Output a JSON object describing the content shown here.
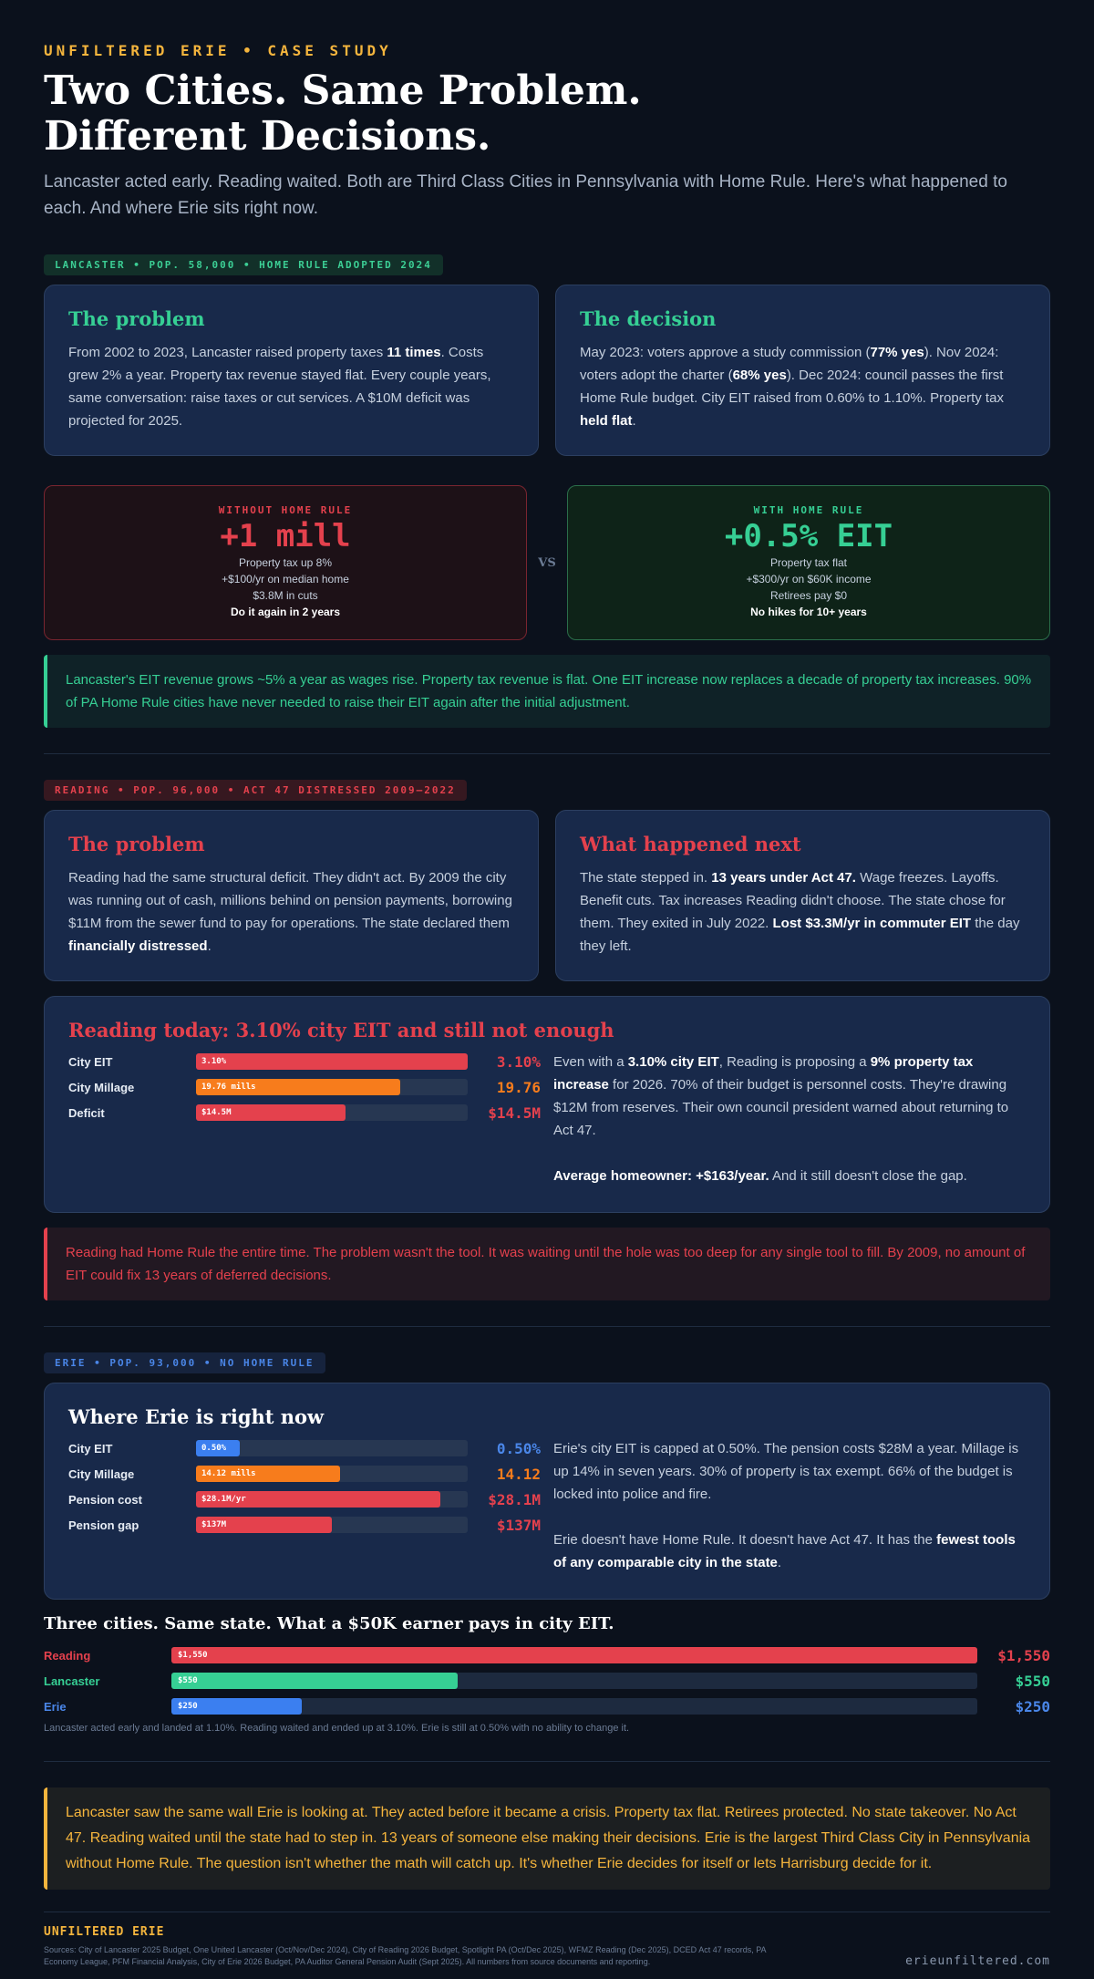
{
  "header": {
    "kicker": "UNFILTERED ERIE • CASE STUDY",
    "title_line1": "Two Cities. Same Problem.",
    "title_line2": "Different Decisions.",
    "subtitle": "Lancaster acted early. Reading waited. Both are Third Class Cities in Pennsylvania with Home Rule. Here's what happened to each. And where Erie sits right now."
  },
  "lancaster": {
    "tag": "LANCASTER • POP. 58,000 • HOME RULE ADOPTED 2024",
    "problem": {
      "title": "The problem",
      "t1": "From 2002 to 2023, Lancaster raised property taxes ",
      "b1": "11 times",
      "t2": ". Costs grew 2% a year. Property tax revenue stayed flat. Every couple years, same conversation: raise taxes or cut services. A $10M deficit was projected for 2025."
    },
    "decision": {
      "title": "The decision",
      "t1": "May 2023: voters approve a study commission (",
      "b1": "77% yes",
      "t2": "). Nov 2024: voters adopt the charter (",
      "b2": "68% yes",
      "t3": "). Dec 2024: council passes the first Home Rule budget. City EIT raised from 0.60% to 1.10%. Property tax ",
      "b3": "held flat",
      "t4": "."
    },
    "without": {
      "label": "WITHOUT HOME RULE",
      "big": "+1 mill",
      "lines": [
        "Property tax up 8%",
        "+$100/yr on median home",
        "$3.8M in cuts"
      ],
      "strong": "Do it again in 2 years"
    },
    "vs": "VS",
    "with": {
      "label": "WITH HOME RULE",
      "big": "+0.5% EIT",
      "lines": [
        "Property tax flat",
        "+$300/yr on $60K income",
        "Retirees pay $0"
      ],
      "strong": "No hikes for 10+ years"
    },
    "callout": "Lancaster's EIT revenue grows ~5% a year as wages rise. Property tax revenue is flat. One EIT increase now replaces a decade of property tax increases. 90% of PA Home Rule cities have never needed to raise their EIT again after the initial adjustment."
  },
  "reading": {
    "tag": "READING • POP. 96,000 • ACT 47 DISTRESSED 2009–2022",
    "problem": {
      "title": "The problem",
      "t1": "Reading had the same structural deficit. They didn't act. By 2009 the city was running out of cash, millions behind on pension payments, borrowing $11M from the sewer fund to pay for operations. The state declared them ",
      "b1": "financially distressed",
      "t2": "."
    },
    "next": {
      "title": "What happened next",
      "t1": "The state stepped in. ",
      "b1": "13 years under Act 47.",
      "t2": " Wage freezes. Layoffs. Benefit cuts. Tax increases Reading didn't choose. The state chose for them. They exited in July 2022. ",
      "b2": "Lost $3.3M/yr in commuter EIT",
      "t3": " the day they left."
    },
    "today": {
      "title": "Reading today: 3.10% city EIT and still not enough",
      "bars": [
        {
          "name": "City EIT",
          "label": "3.10%",
          "value": "3.10%",
          "fraction": 1.0,
          "color": "#e4414d"
        },
        {
          "name": "City Millage",
          "label": "19.76 mills",
          "value": "19.76",
          "fraction": 0.75,
          "color": "#f77c1c"
        },
        {
          "name": "Deficit",
          "label": "$14.5M",
          "value": "$14.5M",
          "fraction": 0.55,
          "color": "#e4414d"
        }
      ],
      "t1": "Even with a ",
      "b1": "3.10% city EIT",
      "t2": ", Reading is proposing a ",
      "b2": "9% property tax increase",
      "t3": " for 2026. 70% of their budget is personnel costs. They're drawing $12M from reserves. Their own council president warned about returning to Act 47.",
      "b3": "Average homeowner: +$163/year.",
      "t4": " And it still doesn't close the gap."
    },
    "callout": "Reading had Home Rule the entire time. The problem wasn't the tool. It was waiting until the hole was too deep for any single tool to fill. By 2009, no amount of EIT could fix 13 years of deferred decisions."
  },
  "erie": {
    "tag": "ERIE • POP. 93,000 • NO HOME RULE",
    "title": "Where Erie is right now",
    "bars": [
      {
        "name": "City EIT",
        "label": "0.50%",
        "value": "0.50%",
        "fraction": 0.16,
        "color": "#3b7ff0",
        "vcolor": "#4a86e8"
      },
      {
        "name": "City Millage",
        "label": "14.12 mills",
        "value": "14.12",
        "fraction": 0.53,
        "color": "#f77c1c",
        "vcolor": "#f77c1c"
      },
      {
        "name": "Pension cost",
        "label": "$28.1M/yr",
        "value": "$28.1M",
        "fraction": 0.9,
        "color": "#e4414d",
        "vcolor": "#e4414d"
      },
      {
        "name": "Pension gap",
        "label": "$137M",
        "value": "$137M",
        "fraction": 0.5,
        "color": "#e4414d",
        "vcolor": "#e4414d"
      }
    ],
    "p1": "Erie's city EIT is capped at 0.50%. The pension costs $28M a year. Millage is up 14% in seven years. 30% of property is tax exempt. 66% of the budget is locked into police and fire.",
    "p2a": "Erie doesn't have Home Rule. It doesn't have Act 47. It has the ",
    "p2b": "fewest tools of any comparable city in the state",
    "p2c": "."
  },
  "chart_data": {
    "type": "bar",
    "title": "Three cities. Same state. What a $50K earner pays in city EIT.",
    "categories": [
      "Reading",
      "Lancaster",
      "Erie"
    ],
    "values": [
      1550,
      550,
      250
    ],
    "value_labels": [
      "$1,550",
      "$550",
      "$250"
    ],
    "colors": [
      "#e4414d",
      "#36cf94",
      "#3b7ff0"
    ],
    "ylim": [
      0,
      1550
    ],
    "note": "Lancaster acted early and landed at 1.10%. Reading waited and ended up at 3.10%. Erie is still at 0.50% with no ability to change it."
  },
  "closing": "Lancaster saw the same wall Erie is looking at. They acted before it became a crisis. Property tax flat. Retirees protected. No state takeover. No Act 47. Reading waited until the state had to step in. 13 years of someone else making their decisions. Erie is the largest Third Class City in Pennsylvania without Home Rule. The question isn't whether the math will catch up. It's whether Erie decides for itself or lets Harrisburg decide for it.",
  "footer": {
    "brand": "UNFILTERED ERIE",
    "sources": "Sources: City of Lancaster 2025 Budget, One United Lancaster (Oct/Nov/Dec 2024), City of Reading 2026 Budget, Spotlight PA (Oct/Dec 2025), WFMZ Reading (Dec 2025), DCED Act 47 records, PA Economy League, PFM Financial Analysis, City of Erie 2026 Budget, PA Auditor General Pension Audit (Sept 2025). All numbers from source documents and reporting.",
    "site": "erieunfiltered.com"
  }
}
